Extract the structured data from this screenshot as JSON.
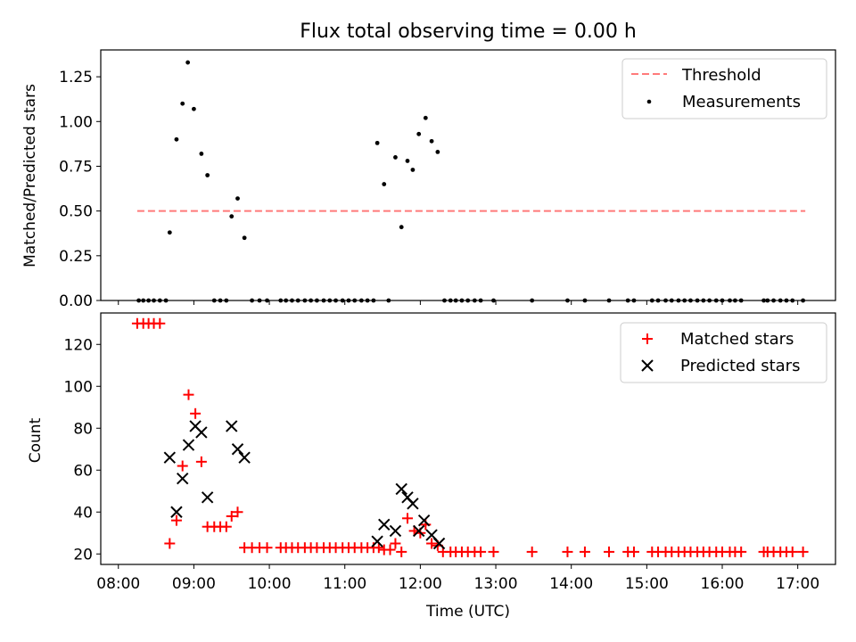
{
  "chart_data": {
    "title": "Flux total observing time = 0.00 h",
    "colors": {
      "threshold": "#ff7a7a",
      "measurements": "#000000",
      "matched": "#ff0000",
      "predicted": "#000000"
    },
    "x_axis": {
      "label": "Time (UTC)",
      "unit": "hours UTC",
      "range": [
        "07:46",
        "17:30"
      ],
      "ticks": [
        "08:00",
        "09:00",
        "10:00",
        "11:00",
        "12:00",
        "13:00",
        "14:00",
        "15:00",
        "16:00",
        "17:00"
      ],
      "tick_values": [
        8,
        9,
        10,
        11,
        12,
        13,
        14,
        15,
        16,
        17
      ]
    },
    "panels": [
      {
        "type": "scatter",
        "ylabel": "Matched/Predicted stars",
        "ylim": [
          0,
          1.4
        ],
        "yticks": [
          "0.00",
          "0.25",
          "0.50",
          "0.75",
          "1.00",
          "1.25"
        ],
        "ytick_values": [
          0,
          0.25,
          0.5,
          0.75,
          1.0,
          1.25
        ],
        "legend_position": "top-right",
        "threshold": {
          "name": "Threshold",
          "y": 0.5,
          "x": [
            8.25,
            17.1
          ],
          "style": "dashed"
        },
        "series": [
          {
            "name": "Measurements",
            "marker": "dot",
            "points": [
              [
                8.27,
                0
              ],
              [
                8.33,
                0
              ],
              [
                8.4,
                0
              ],
              [
                8.47,
                0
              ],
              [
                8.55,
                0
              ],
              [
                8.63,
                0
              ],
              [
                8.68,
                0.38
              ],
              [
                8.77,
                0.9
              ],
              [
                8.85,
                1.1
              ],
              [
                8.92,
                1.33
              ],
              [
                9.0,
                1.07
              ],
              [
                9.1,
                0.82
              ],
              [
                9.18,
                0.7
              ],
              [
                9.27,
                0
              ],
              [
                9.35,
                0
              ],
              [
                9.43,
                0
              ],
              [
                9.5,
                0.47
              ],
              [
                9.58,
                0.57
              ],
              [
                9.67,
                0.35
              ],
              [
                9.77,
                0
              ],
              [
                9.87,
                0
              ],
              [
                9.97,
                0
              ],
              [
                10.15,
                0
              ],
              [
                10.22,
                0
              ],
              [
                10.3,
                0
              ],
              [
                10.38,
                0
              ],
              [
                10.47,
                0
              ],
              [
                10.55,
                0
              ],
              [
                10.63,
                0
              ],
              [
                10.72,
                0
              ],
              [
                10.8,
                0
              ],
              [
                10.88,
                0
              ],
              [
                10.97,
                0
              ],
              [
                11.05,
                0
              ],
              [
                11.13,
                0
              ],
              [
                11.22,
                0
              ],
              [
                11.3,
                0
              ],
              [
                11.38,
                0
              ],
              [
                11.43,
                0.88
              ],
              [
                11.52,
                0.65
              ],
              [
                11.58,
                0
              ],
              [
                11.67,
                0.8
              ],
              [
                11.75,
                0.41
              ],
              [
                11.83,
                0.78
              ],
              [
                11.9,
                0.73
              ],
              [
                11.98,
                0.93
              ],
              [
                12.07,
                1.02
              ],
              [
                12.15,
                0.89
              ],
              [
                12.23,
                0.83
              ],
              [
                12.32,
                0
              ],
              [
                12.4,
                0
              ],
              [
                12.47,
                0
              ],
              [
                12.55,
                0
              ],
              [
                12.63,
                0
              ],
              [
                12.72,
                0
              ],
              [
                12.8,
                0
              ],
              [
                12.97,
                0
              ],
              [
                13.48,
                0
              ],
              [
                13.95,
                0
              ],
              [
                14.18,
                0
              ],
              [
                14.5,
                0
              ],
              [
                14.75,
                0
              ],
              [
                14.83,
                0
              ],
              [
                15.07,
                0
              ],
              [
                15.15,
                0
              ],
              [
                15.25,
                0
              ],
              [
                15.33,
                0
              ],
              [
                15.42,
                0
              ],
              [
                15.5,
                0
              ],
              [
                15.58,
                0
              ],
              [
                15.67,
                0
              ],
              [
                15.75,
                0
              ],
              [
                15.83,
                0
              ],
              [
                15.92,
                0
              ],
              [
                16.0,
                0
              ],
              [
                16.1,
                0
              ],
              [
                16.17,
                0
              ],
              [
                16.25,
                0
              ],
              [
                16.55,
                0
              ],
              [
                16.6,
                0
              ],
              [
                16.68,
                0
              ],
              [
                16.77,
                0
              ],
              [
                16.85,
                0
              ],
              [
                16.93,
                0
              ],
              [
                17.07,
                0
              ]
            ]
          }
        ]
      },
      {
        "type": "scatter",
        "ylabel": "Count",
        "ylim": [
          15,
          135
        ],
        "yticks": [
          "20",
          "40",
          "60",
          "80",
          "100",
          "120"
        ],
        "ytick_values": [
          20,
          40,
          60,
          80,
          100,
          120
        ],
        "legend_position": "top-right",
        "series": [
          {
            "name": "Matched stars",
            "marker": "plus",
            "points": [
              [
                8.25,
                130
              ],
              [
                8.33,
                130
              ],
              [
                8.4,
                130
              ],
              [
                8.47,
                130
              ],
              [
                8.55,
                130
              ],
              [
                8.68,
                25
              ],
              [
                8.77,
                36
              ],
              [
                8.85,
                62
              ],
              [
                8.93,
                96
              ],
              [
                9.02,
                87
              ],
              [
                9.1,
                64
              ],
              [
                9.18,
                33
              ],
              [
                9.27,
                33
              ],
              [
                9.35,
                33
              ],
              [
                9.43,
                33
              ],
              [
                9.5,
                38
              ],
              [
                9.58,
                40
              ],
              [
                9.67,
                23
              ],
              [
                9.77,
                23
              ],
              [
                9.87,
                23
              ],
              [
                9.97,
                23
              ],
              [
                10.15,
                23
              ],
              [
                10.22,
                23
              ],
              [
                10.3,
                23
              ],
              [
                10.38,
                23
              ],
              [
                10.47,
                23
              ],
              [
                10.55,
                23
              ],
              [
                10.63,
                23
              ],
              [
                10.72,
                23
              ],
              [
                10.8,
                23
              ],
              [
                10.88,
                23
              ],
              [
                10.97,
                23
              ],
              [
                11.05,
                23
              ],
              [
                11.13,
                23
              ],
              [
                11.22,
                23
              ],
              [
                11.3,
                23
              ],
              [
                11.38,
                23
              ],
              [
                11.45,
                23
              ],
              [
                11.52,
                22
              ],
              [
                11.6,
                22
              ],
              [
                11.67,
                25
              ],
              [
                11.75,
                21
              ],
              [
                11.83,
                37
              ],
              [
                11.92,
                31
              ],
              [
                12.0,
                30
              ],
              [
                12.07,
                34
              ],
              [
                12.15,
                25
              ],
              [
                12.23,
                24
              ],
              [
                12.3,
                21
              ],
              [
                12.4,
                21
              ],
              [
                12.47,
                21
              ],
              [
                12.55,
                21
              ],
              [
                12.63,
                21
              ],
              [
                12.72,
                21
              ],
              [
                12.8,
                21
              ],
              [
                12.97,
                21
              ],
              [
                13.48,
                21
              ],
              [
                13.95,
                21
              ],
              [
                14.18,
                21
              ],
              [
                14.5,
                21
              ],
              [
                14.75,
                21
              ],
              [
                14.83,
                21
              ],
              [
                15.07,
                21
              ],
              [
                15.15,
                21
              ],
              [
                15.25,
                21
              ],
              [
                15.33,
                21
              ],
              [
                15.42,
                21
              ],
              [
                15.5,
                21
              ],
              [
                15.58,
                21
              ],
              [
                15.67,
                21
              ],
              [
                15.75,
                21
              ],
              [
                15.83,
                21
              ],
              [
                15.92,
                21
              ],
              [
                16.0,
                21
              ],
              [
                16.1,
                21
              ],
              [
                16.17,
                21
              ],
              [
                16.25,
                21
              ],
              [
                16.55,
                21
              ],
              [
                16.6,
                21
              ],
              [
                16.68,
                21
              ],
              [
                16.77,
                21
              ],
              [
                16.85,
                21
              ],
              [
                16.93,
                21
              ],
              [
                17.07,
                21
              ]
            ]
          },
          {
            "name": "Predicted stars",
            "marker": "x",
            "points": [
              [
                8.68,
                66
              ],
              [
                8.77,
                40
              ],
              [
                8.85,
                56
              ],
              [
                8.93,
                72
              ],
              [
                9.02,
                81
              ],
              [
                9.1,
                78
              ],
              [
                9.18,
                47
              ],
              [
                9.5,
                81
              ],
              [
                9.58,
                70
              ],
              [
                9.67,
                66
              ],
              [
                11.43,
                26
              ],
              [
                11.52,
                34
              ],
              [
                11.67,
                31
              ],
              [
                11.75,
                51
              ],
              [
                11.83,
                47
              ],
              [
                11.9,
                44
              ],
              [
                11.98,
                31
              ],
              [
                12.05,
                36
              ],
              [
                12.15,
                29
              ],
              [
                12.25,
                25
              ]
            ]
          }
        ]
      }
    ]
  }
}
